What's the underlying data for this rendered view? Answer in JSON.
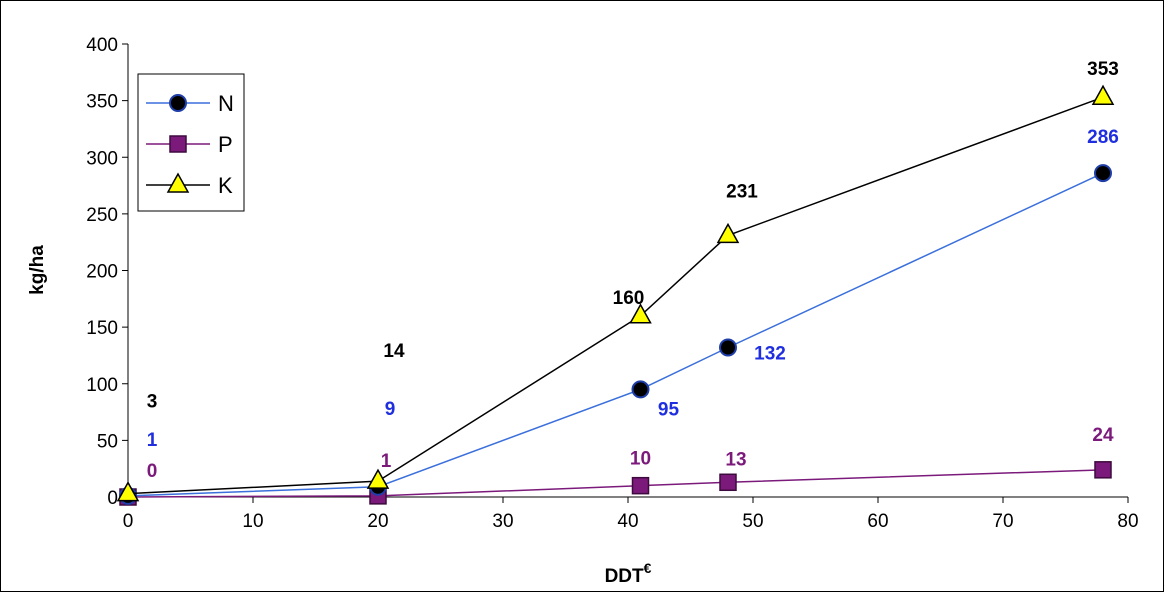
{
  "chart_data": {
    "type": "line",
    "xlabel": "DDT",
    "xlabel_superscript": "€",
    "ylabel": "kg/ha",
    "xlim": [
      0,
      80
    ],
    "ylim": [
      0,
      400
    ],
    "xticks": [
      0,
      10,
      20,
      30,
      40,
      50,
      60,
      70,
      80
    ],
    "yticks": [
      0,
      50,
      100,
      150,
      200,
      250,
      300,
      350,
      400
    ],
    "grid": false,
    "legend_position": "top-left",
    "x": [
      0,
      20,
      41,
      48,
      78
    ],
    "series": [
      {
        "name": "N",
        "values": [
          1,
          9,
          95,
          132,
          286
        ],
        "line_color": "#3a6fdc",
        "marker": "circle",
        "marker_fill": "#000000",
        "marker_stroke": "#1f3ea8",
        "label_color": "#1f2fe0"
      },
      {
        "name": "P",
        "values": [
          0,
          1,
          10,
          13,
          24
        ],
        "line_color": "#7b1a7b",
        "marker": "square",
        "marker_fill": "#7b1a7b",
        "marker_stroke": "#3d0a3d",
        "label_color": "#7b1a7b"
      },
      {
        "name": "K",
        "values": [
          3,
          14,
          160,
          231,
          353
        ],
        "line_color": "#000000",
        "marker": "triangle",
        "marker_fill": "#ffff00",
        "marker_stroke": "#000000",
        "label_color": "#000000"
      }
    ]
  }
}
